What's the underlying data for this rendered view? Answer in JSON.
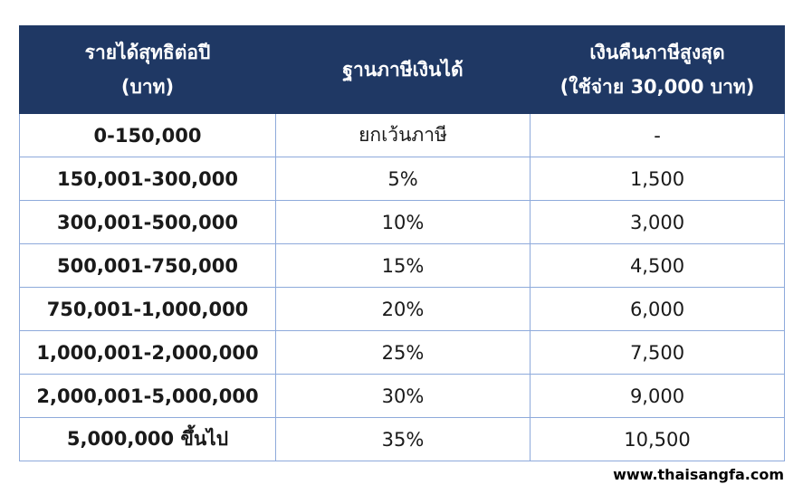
{
  "table": {
    "headers": [
      {
        "line1": "รายได้สุทธิต่อปี",
        "line2": "(บาท)"
      },
      {
        "line1": "ฐานภาษีเงินได้",
        "line2": ""
      },
      {
        "line1": "เงินคืนภาษีสูงสุด",
        "line2": "(ใช้จ่าย 30,000 บาท)"
      }
    ],
    "rows": [
      {
        "income": "0-150,000",
        "rate": "ยกเว้นภาษี",
        "refund": "-"
      },
      {
        "income": "150,001-300,000",
        "rate": "5%",
        "refund": "1,500"
      },
      {
        "income": "300,001-500,000",
        "rate": "10%",
        "refund": "3,000"
      },
      {
        "income": "500,001-750,000",
        "rate": "15%",
        "refund": "4,500"
      },
      {
        "income": "750,001-1,000,000",
        "rate": "20%",
        "refund": "6,000"
      },
      {
        "income": "1,000,001-2,000,000",
        "rate": "25%",
        "refund": "7,500"
      },
      {
        "income": "2,000,001-5,000,000",
        "rate": "30%",
        "refund": "9,000"
      },
      {
        "income": "5,000,000 ขึ้นไป",
        "rate": "35%",
        "refund": "10,500"
      }
    ]
  },
  "footer": {
    "site": "www.thaisangfa.com"
  },
  "colors": {
    "header_bg": "#1f3864",
    "header_text": "#ffffff",
    "border": "#8eaadb"
  }
}
